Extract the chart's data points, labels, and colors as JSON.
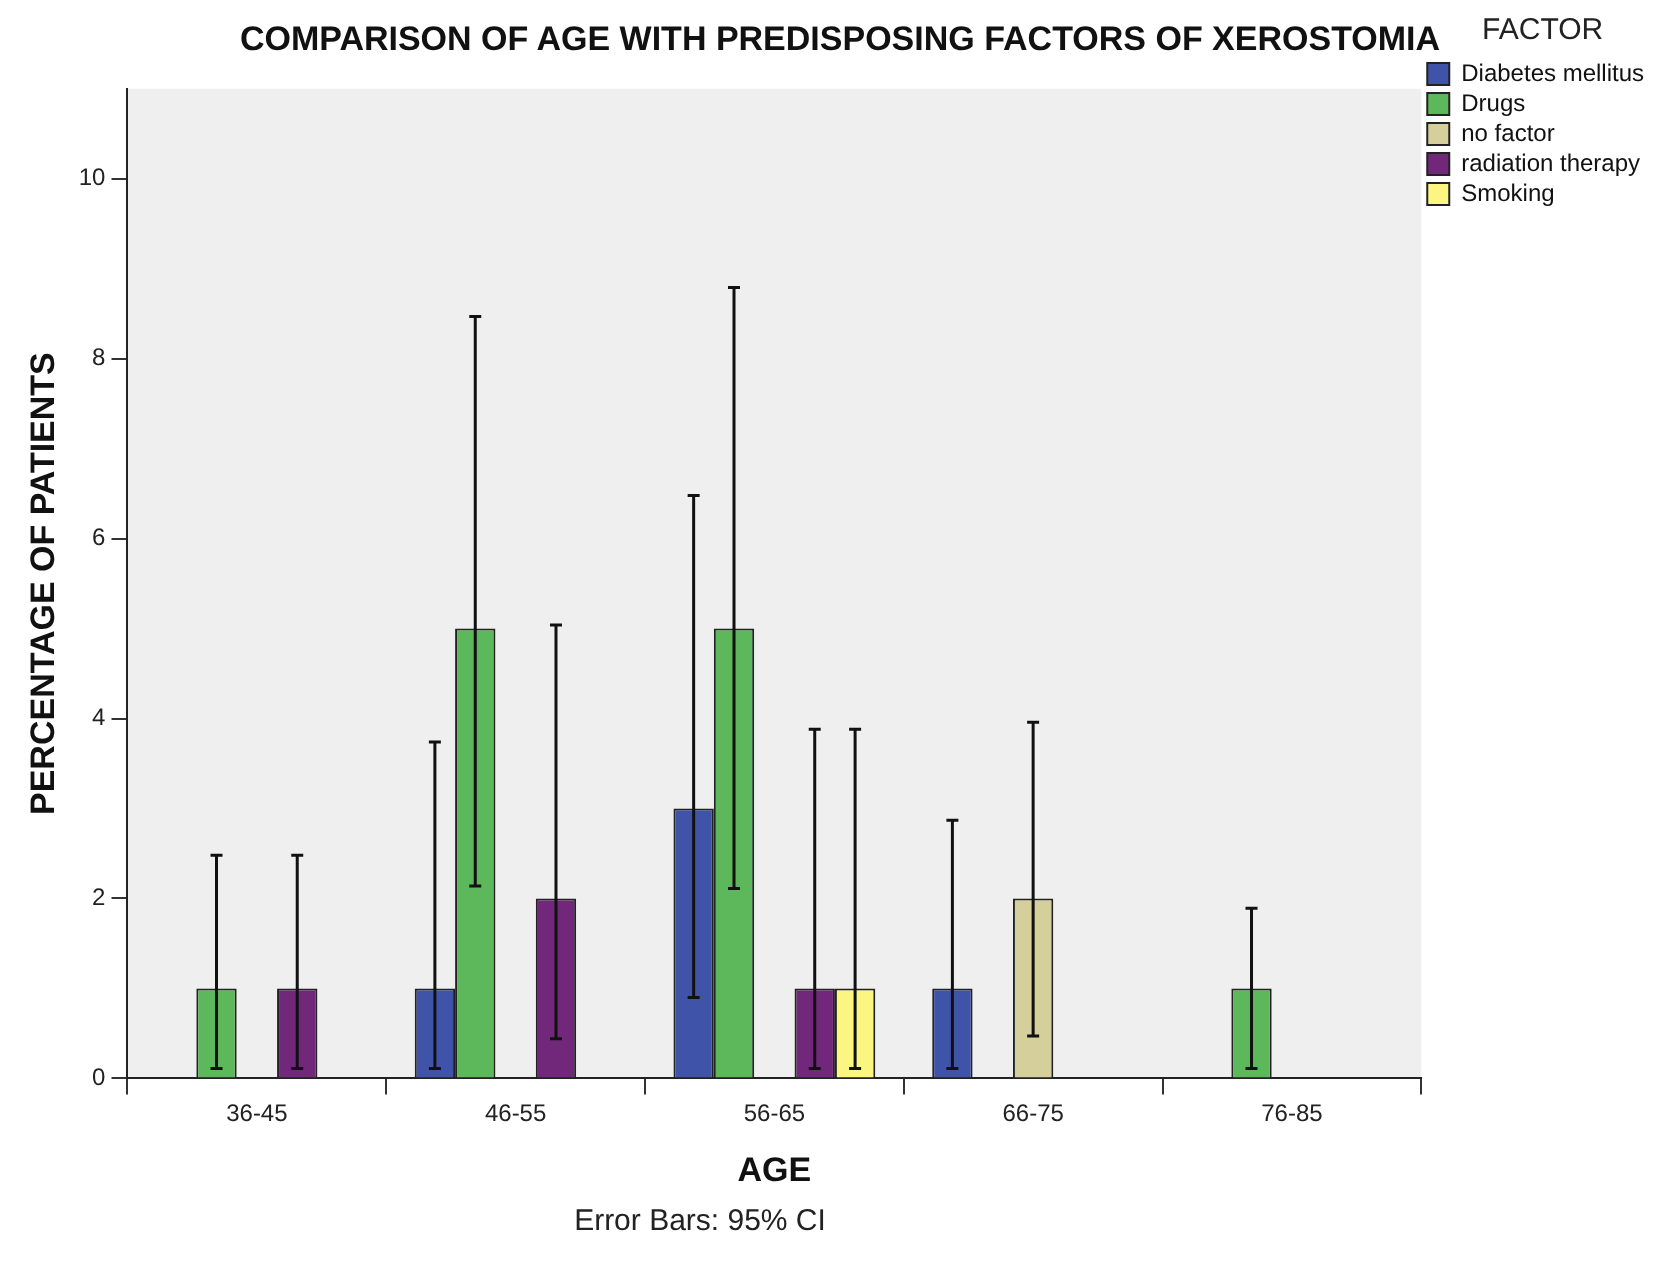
{
  "chart_data": {
    "type": "bar",
    "title": "COMPARISON OF AGE WITH PREDISPOSING FACTORS OF XEROSTOMIA",
    "xlabel": "AGE",
    "ylabel": "PERCENTAGE OF PATIENTS",
    "legend_title": "FACTOR",
    "legend": "right",
    "grid": false,
    "categories": [
      "36-45",
      "46-55",
      "56-65",
      "66-75",
      "76-85"
    ],
    "series": [
      {
        "name": "Diabetes mellitus",
        "color": "#3f54a8",
        "values": [
          null,
          1,
          3,
          1,
          null
        ],
        "errors": [
          null,
          [
            0.11,
            3.74
          ],
          [
            0.9,
            6.48
          ],
          [
            0.11,
            2.87
          ],
          null
        ]
      },
      {
        "name": "Drugs",
        "color": "#5cb85a",
        "values": [
          1,
          5,
          5,
          null,
          1
        ],
        "errors": [
          [
            0.11,
            2.48
          ],
          [
            2.14,
            8.47
          ],
          [
            2.11,
            8.79
          ],
          null,
          [
            0.11,
            1.89
          ]
        ]
      },
      {
        "name": "no factor",
        "color": "#d4cf9b",
        "values": [
          null,
          null,
          null,
          2,
          null
        ],
        "errors": [
          null,
          null,
          null,
          [
            0.47,
            3.96
          ],
          null
        ]
      },
      {
        "name": "radiation therapy",
        "color": "#72287a",
        "values": [
          1,
          2,
          1,
          null,
          null
        ],
        "errors": [
          [
            0.11,
            2.48
          ],
          [
            0.44,
            5.04
          ],
          [
            0.11,
            3.88
          ],
          null,
          null
        ]
      },
      {
        "name": "Smoking",
        "color": "#fbf582",
        "values": [
          null,
          null,
          1,
          null,
          null
        ],
        "errors": [
          null,
          null,
          [
            0.11,
            3.88
          ],
          null,
          null
        ]
      }
    ],
    "ylim": [
      0,
      11
    ],
    "yticks": [
      0,
      2,
      4,
      6,
      8,
      10
    ],
    "annotations": [
      "Error Bars: 95% CI"
    ]
  }
}
